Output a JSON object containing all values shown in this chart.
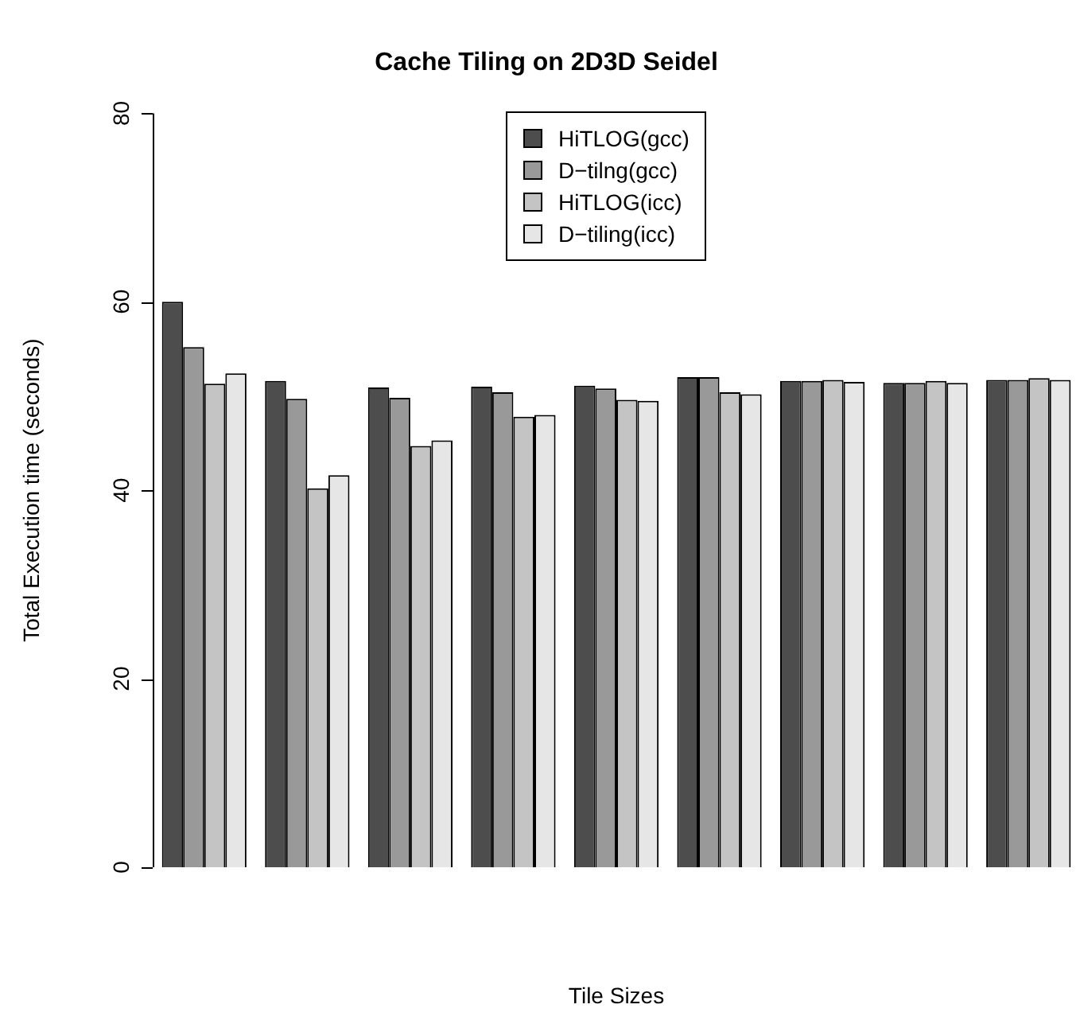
{
  "chart_data": {
    "type": "bar",
    "title": "Cache Tiling on 2D3D Seidel",
    "xlabel": "Tile Sizes",
    "ylabel": "Total Execution time (seconds)",
    "categories": [
      null,
      null,
      null,
      null,
      null,
      null,
      null,
      null,
      null
    ],
    "series": [
      {
        "name": "HiTLOG(gcc)",
        "color": "#4d4d4d",
        "values": [
          60.0,
          51.6,
          50.9,
          51.0,
          51.1,
          52.0,
          51.6,
          51.4,
          51.7
        ]
      },
      {
        "name": "D−tilng(gcc)",
        "color": "#999999",
        "values": [
          55.2,
          49.7,
          49.8,
          50.4,
          50.8,
          52.0,
          51.6,
          51.4,
          51.7
        ]
      },
      {
        "name": "HiTLOG(icc)",
        "color": "#c4c4c4",
        "values": [
          51.3,
          40.2,
          44.7,
          47.8,
          49.6,
          50.4,
          51.7,
          51.6,
          51.9
        ]
      },
      {
        "name": "D−tiling(icc)",
        "color": "#e6e6e6",
        "values": [
          52.4,
          41.6,
          45.3,
          48.0,
          49.5,
          50.2,
          51.5,
          51.4,
          51.7
        ]
      }
    ],
    "ylim": [
      0,
      80
    ],
    "yticks": [
      0,
      20,
      40,
      60,
      80
    ],
    "grid": false,
    "legend": "top",
    "tick_labels": "y"
  }
}
